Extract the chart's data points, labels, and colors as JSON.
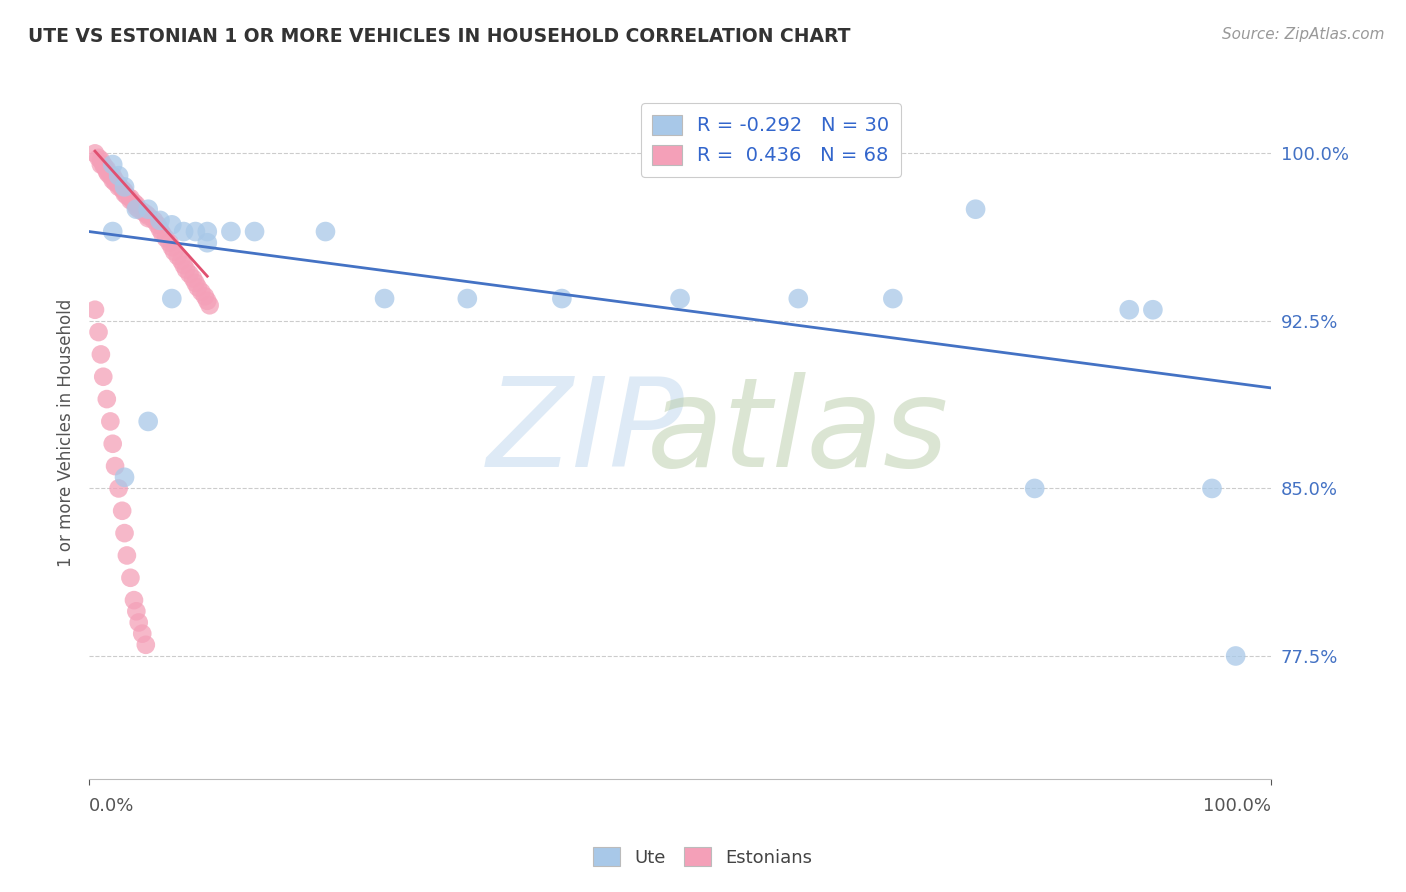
{
  "title": "UTE VS ESTONIAN 1 OR MORE VEHICLES IN HOUSEHOLD CORRELATION CHART",
  "source": "Source: ZipAtlas.com",
  "ylabel": "1 or more Vehicles in Household",
  "legend_ute_R": "-0.292",
  "legend_ute_N": "30",
  "legend_est_R": "0.436",
  "legend_est_N": "68",
  "xlim": [
    0.0,
    1.0
  ],
  "ylim": [
    0.72,
    1.03
  ],
  "ute_color": "#a8c8e8",
  "est_color": "#f4a0b8",
  "trendline_ute_color": "#4472c4",
  "trendline_est_color": "#e05070",
  "bg_color": "#ffffff",
  "ytick_color": "#4472c4",
  "title_color": "#333333",
  "source_color": "#999999",
  "ytick_vals": [
    0.775,
    0.85,
    0.925,
    1.0
  ],
  "ytick_labels": [
    "77.5%",
    "85.0%",
    "92.5%",
    "100.0%"
  ],
  "ute_x": [
    0.02,
    0.025,
    0.03,
    0.04,
    0.05,
    0.06,
    0.07,
    0.08,
    0.09,
    0.1,
    0.12,
    0.14,
    0.2,
    0.25,
    0.32,
    0.4,
    0.5,
    0.6,
    0.68,
    0.75,
    0.8,
    0.88,
    0.9,
    0.95,
    0.97,
    0.02,
    0.03,
    0.05,
    0.07,
    0.1
  ],
  "ute_y": [
    0.995,
    0.99,
    0.985,
    0.975,
    0.975,
    0.97,
    0.968,
    0.965,
    0.965,
    0.96,
    0.965,
    0.965,
    0.965,
    0.935,
    0.935,
    0.935,
    0.935,
    0.935,
    0.935,
    0.975,
    0.85,
    0.93,
    0.93,
    0.85,
    0.775,
    0.965,
    0.855,
    0.88,
    0.935,
    0.965
  ],
  "est_x": [
    0.005,
    0.008,
    0.01,
    0.01,
    0.012,
    0.013,
    0.015,
    0.015,
    0.016,
    0.018,
    0.02,
    0.02,
    0.022,
    0.022,
    0.025,
    0.025,
    0.028,
    0.03,
    0.03,
    0.032,
    0.035,
    0.035,
    0.038,
    0.04,
    0.04,
    0.042,
    0.045,
    0.048,
    0.05,
    0.05,
    0.055,
    0.058,
    0.06,
    0.062,
    0.065,
    0.068,
    0.07,
    0.072,
    0.075,
    0.078,
    0.08,
    0.082,
    0.085,
    0.088,
    0.09,
    0.092,
    0.095,
    0.098,
    0.1,
    0.102,
    0.005,
    0.008,
    0.01,
    0.012,
    0.015,
    0.018,
    0.02,
    0.022,
    0.025,
    0.028,
    0.03,
    0.032,
    0.035,
    0.038,
    0.04,
    0.042,
    0.045,
    0.048
  ],
  "est_y": [
    1.0,
    0.998,
    0.997,
    0.995,
    0.995,
    0.994,
    0.993,
    0.992,
    0.991,
    0.99,
    0.99,
    0.988,
    0.988,
    0.987,
    0.986,
    0.985,
    0.984,
    0.983,
    0.982,
    0.981,
    0.98,
    0.979,
    0.978,
    0.977,
    0.976,
    0.975,
    0.974,
    0.973,
    0.972,
    0.971,
    0.97,
    0.968,
    0.966,
    0.964,
    0.962,
    0.96,
    0.958,
    0.956,
    0.954,
    0.952,
    0.95,
    0.948,
    0.946,
    0.944,
    0.942,
    0.94,
    0.938,
    0.936,
    0.934,
    0.932,
    0.93,
    0.92,
    0.91,
    0.9,
    0.89,
    0.88,
    0.87,
    0.86,
    0.85,
    0.84,
    0.83,
    0.82,
    0.81,
    0.8,
    0.795,
    0.79,
    0.785,
    0.78
  ],
  "trendline_ute_x0": 0.0,
  "trendline_ute_y0": 0.965,
  "trendline_ute_x1": 1.0,
  "trendline_ute_y1": 0.895,
  "trendline_est_x0": 0.005,
  "trendline_est_y0": 1.001,
  "trendline_est_x1": 0.1,
  "trendline_est_y1": 0.945
}
